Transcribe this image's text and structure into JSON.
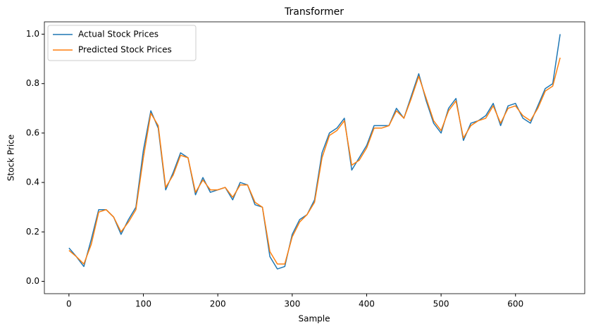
{
  "chart_data": {
    "type": "line",
    "title": "Transformer",
    "x_label": "Sample",
    "y_label": "Stock Price",
    "x": [
      0,
      10,
      20,
      30,
      40,
      50,
      60,
      70,
      80,
      90,
      100,
      110,
      120,
      130,
      140,
      150,
      160,
      170,
      180,
      190,
      200,
      210,
      220,
      230,
      240,
      250,
      260,
      270,
      280,
      290,
      300,
      310,
      320,
      330,
      340,
      350,
      360,
      370,
      380,
      390,
      400,
      410,
      420,
      430,
      440,
      450,
      460,
      470,
      480,
      490,
      500,
      510,
      520,
      530,
      540,
      550,
      560,
      570,
      580,
      590,
      600,
      610,
      620,
      630,
      640,
      650,
      660
    ],
    "series": [
      {
        "name": "Actual Stock Prices",
        "color": "#1f77b4",
        "values": [
          0.135,
          0.1,
          0.06,
          0.17,
          0.29,
          0.29,
          0.26,
          0.19,
          0.25,
          0.3,
          0.53,
          0.69,
          0.62,
          0.37,
          0.44,
          0.52,
          0.5,
          0.35,
          0.42,
          0.36,
          0.37,
          0.38,
          0.33,
          0.4,
          0.39,
          0.31,
          0.3,
          0.1,
          0.05,
          0.06,
          0.19,
          0.25,
          0.27,
          0.33,
          0.52,
          0.6,
          0.62,
          0.66,
          0.45,
          0.5,
          0.55,
          0.63,
          0.63,
          0.63,
          0.7,
          0.66,
          0.75,
          0.84,
          0.73,
          0.64,
          0.6,
          0.7,
          0.74,
          0.57,
          0.64,
          0.65,
          0.67,
          0.72,
          0.63,
          0.71,
          0.72,
          0.66,
          0.64,
          0.71,
          0.78,
          0.8,
          1.0
        ]
      },
      {
        "name": "Predicted Stock Prices",
        "color": "#ff7f0e",
        "values": [
          0.125,
          0.1,
          0.07,
          0.15,
          0.28,
          0.29,
          0.26,
          0.2,
          0.24,
          0.29,
          0.5,
          0.68,
          0.63,
          0.38,
          0.43,
          0.51,
          0.5,
          0.36,
          0.41,
          0.37,
          0.37,
          0.38,
          0.34,
          0.39,
          0.39,
          0.32,
          0.3,
          0.12,
          0.07,
          0.07,
          0.18,
          0.24,
          0.27,
          0.32,
          0.5,
          0.59,
          0.61,
          0.65,
          0.47,
          0.49,
          0.54,
          0.62,
          0.62,
          0.63,
          0.69,
          0.66,
          0.74,
          0.83,
          0.74,
          0.65,
          0.61,
          0.69,
          0.73,
          0.58,
          0.63,
          0.65,
          0.66,
          0.71,
          0.64,
          0.7,
          0.71,
          0.67,
          0.65,
          0.7,
          0.77,
          0.79,
          0.905
        ]
      }
    ],
    "xlim": [
      -33,
      693
    ],
    "ylim": [
      -0.05,
      1.05
    ],
    "xticks": [
      0,
      100,
      200,
      300,
      400,
      500,
      600
    ],
    "yticks": [
      {
        "value": 0,
        "label": "0.0"
      },
      0.2,
      0.4,
      0.6,
      0.8,
      {
        "value": 1,
        "label": "1.0"
      }
    ],
    "legend": "upper left"
  }
}
